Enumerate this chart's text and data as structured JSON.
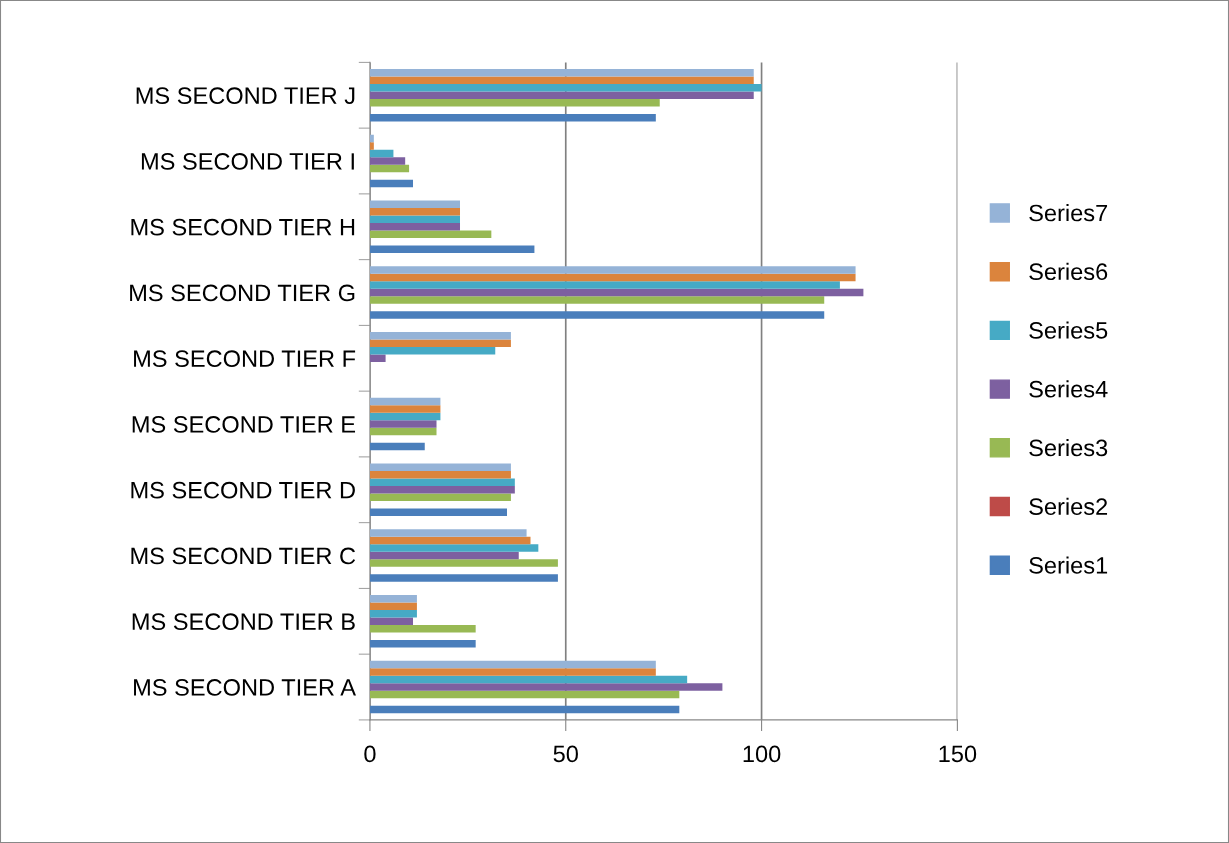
{
  "chart_data": {
    "type": "bar",
    "orientation": "horizontal",
    "categories": [
      "MS SECOND TIER J",
      "MS SECOND TIER I",
      "MS SECOND TIER H",
      "MS SECOND TIER G",
      "MS SECOND TIER F",
      "MS SECOND TIER E",
      "MS SECOND TIER D",
      "MS SECOND TIER C",
      "MS SECOND TIER B",
      "MS SECOND TIER A"
    ],
    "series": [
      {
        "name": "Series1",
        "color": "#4a7ebb",
        "values": [
          73,
          11,
          42,
          116,
          null,
          14,
          35,
          48,
          27,
          79
        ]
      },
      {
        "name": "Series2",
        "color": "#be4b48",
        "values": [
          null,
          null,
          null,
          null,
          null,
          null,
          null,
          null,
          null,
          null
        ]
      },
      {
        "name": "Series3",
        "color": "#98b954",
        "values": [
          74,
          10,
          31,
          116,
          null,
          17,
          36,
          48,
          27,
          79
        ]
      },
      {
        "name": "Series4",
        "color": "#7d60a0",
        "values": [
          98,
          9,
          23,
          126,
          4,
          17,
          37,
          38,
          11,
          90
        ]
      },
      {
        "name": "Series5",
        "color": "#46aac5",
        "values": [
          100,
          6,
          23,
          120,
          32,
          18,
          37,
          43,
          12,
          81
        ]
      },
      {
        "name": "Series6",
        "color": "#db843d",
        "values": [
          98,
          1,
          23,
          124,
          36,
          18,
          36,
          41,
          12,
          73
        ]
      },
      {
        "name": "Series7",
        "color": "#95b3d7",
        "values": [
          98,
          1,
          23,
          124,
          36,
          18,
          36,
          40,
          12,
          73
        ]
      }
    ],
    "xlim": [
      0,
      150
    ],
    "xticks": [
      0,
      50,
      100,
      150
    ],
    "grid": "x",
    "legend": "right"
  }
}
